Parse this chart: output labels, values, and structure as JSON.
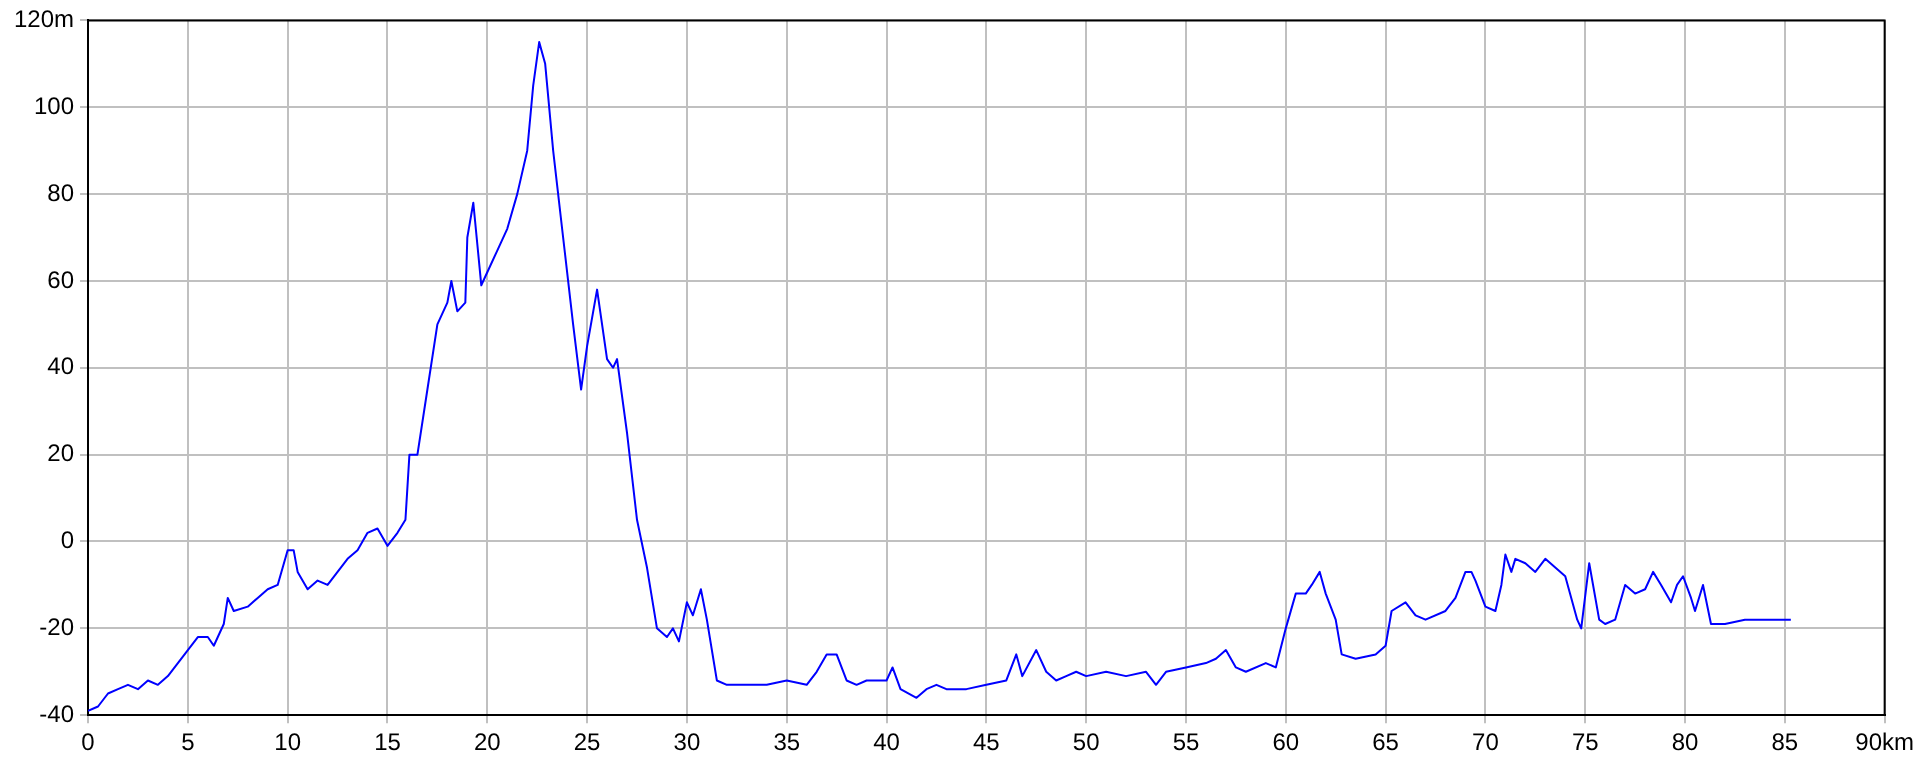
{
  "chart_data": {
    "type": "line",
    "x": [
      0,
      0.5,
      1,
      1.5,
      2,
      2.5,
      3,
      3.5,
      4,
      4.5,
      5,
      5.5,
      6,
      6.3,
      6.8,
      7,
      7.3,
      8,
      8.5,
      9,
      9.5,
      10,
      10.3,
      10.5,
      11,
      11.5,
      12,
      12.5,
      13,
      13.5,
      14,
      14.5,
      15,
      15.5,
      15.9,
      16.1,
      16.5,
      17,
      17.5,
      18,
      18.2,
      18.5,
      18.9,
      19,
      19.3,
      19.7,
      20,
      20.5,
      21,
      21.5,
      22,
      22.3,
      22.6,
      22.9,
      23.3,
      23.8,
      24.3,
      24.7,
      25,
      25.5,
      26,
      26.3,
      26.5,
      27,
      27.5,
      28,
      28.5,
      29,
      29.3,
      29.6,
      30,
      30.3,
      30.7,
      31,
      31.5,
      32,
      33,
      34,
      35,
      36,
      36.5,
      37,
      37.5,
      38,
      38.5,
      39,
      40,
      40.3,
      40.7,
      41.5,
      42,
      42.5,
      43,
      44,
      45,
      46,
      46.5,
      46.8,
      47.5,
      48,
      48.5,
      49,
      49.5,
      50,
      51,
      52,
      53,
      53.5,
      54,
      55,
      56,
      56.5,
      57,
      57.5,
      58,
      59,
      59.5,
      60,
      60.5,
      61,
      61.3,
      61.7,
      62,
      62.5,
      62.8,
      63.5,
      64.5,
      65,
      65.3,
      66,
      66.5,
      67,
      68,
      68.5,
      69,
      69.3,
      69.5,
      70,
      70.5,
      70.8,
      71,
      71.3,
      71.5,
      72,
      72.5,
      73,
      73.5,
      74,
      74.6,
      74.8,
      75.2,
      75.7,
      76,
      76.5,
      77,
      77.5,
      78,
      78.4,
      78.8,
      79.3,
      79.6,
      79.9,
      80.3,
      80.5,
      80.9,
      81.3,
      82,
      83,
      84,
      85.3
    ],
    "series": [
      {
        "color": "#0000ff",
        "values": [
          -39,
          -38,
          -35,
          -34,
          -33,
          -34,
          -32,
          -33,
          -31,
          -28,
          -25,
          -22,
          -22,
          -24,
          -19,
          -13,
          -16,
          -15,
          -13,
          -11,
          -10,
          -2,
          -2,
          -7,
          -11,
          -9,
          -10,
          -7,
          -4,
          -2,
          2,
          3,
          -1,
          2,
          5,
          20,
          20,
          35,
          50,
          55,
          60,
          53,
          55,
          70,
          78,
          59,
          62,
          67,
          72,
          80,
          90,
          105,
          115,
          110,
          90,
          70,
          50,
          35,
          45,
          58,
          42,
          40,
          42,
          25,
          5,
          -6,
          -20,
          -22,
          -20,
          -23,
          -14,
          -17,
          -11,
          -18,
          -32,
          -33,
          -33,
          -33,
          -32,
          -33,
          -30,
          -26,
          -26,
          -32,
          -33,
          -32,
          -32,
          -29,
          -34,
          -36,
          -34,
          -33,
          -34,
          -34,
          -33,
          -32,
          -26,
          -31,
          -25,
          -30,
          -32,
          -31,
          -30,
          -31,
          -30,
          -31,
          -30,
          -33,
          -30,
          -29,
          -28,
          -27,
          -25,
          -29,
          -30,
          -28,
          -29,
          -20,
          -12,
          -12,
          -10,
          -7,
          -12,
          -18,
          -26,
          -27,
          -26,
          -24,
          -16,
          -14,
          -17,
          -18,
          -16,
          -13,
          -7,
          -7,
          -9,
          -15,
          -16,
          -10,
          -3,
          -7,
          -4,
          -5,
          -7,
          -4,
          -6,
          -8,
          -18,
          -20,
          -5,
          -18,
          -19,
          -18,
          -10,
          -12,
          -11,
          -7,
          -10,
          -14,
          -10,
          -8,
          -13,
          -16,
          -10,
          -19,
          -19,
          -18,
          -18,
          -18
        ]
      }
    ],
    "xlim": [
      0,
      90
    ],
    "xticks": [
      0,
      5,
      10,
      15,
      20,
      25,
      30,
      35,
      40,
      45,
      50,
      55,
      60,
      65,
      70,
      75,
      80,
      85,
      {
        "value": 90,
        "label": "90km"
      }
    ],
    "ylim": [
      -40,
      120
    ],
    "yticks": [
      -40,
      -20,
      0,
      20,
      40,
      60,
      80,
      100,
      {
        "value": 120,
        "label": "120m"
      }
    ],
    "grid": true,
    "line_style": "solid",
    "marker": "none",
    "legend": false
  }
}
